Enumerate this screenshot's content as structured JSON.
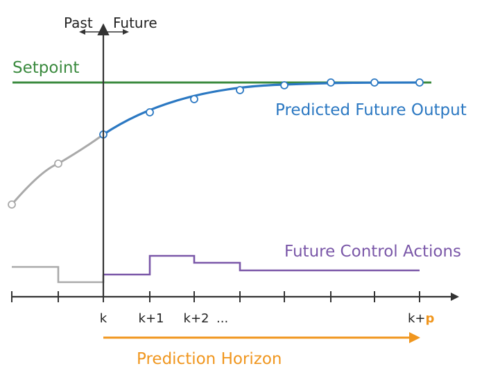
{
  "labels": {
    "past": "Past",
    "future": "Future",
    "setpoint": "Setpoint",
    "predicted_output": "Predicted Future Output",
    "control_actions": "Future Control Actions",
    "prediction_horizon": "Prediction Horizon"
  },
  "ticks": {
    "k": "k",
    "k1": "k+1",
    "k2": "k+2",
    "ellipsis": "...",
    "kp_prefix": "k+",
    "kp_suffix": "p"
  },
  "colors": {
    "setpoint": "#3a8a3e",
    "predicted": "#2b78c2",
    "past": "#a9a9a9",
    "control": "#7a57a8",
    "horizon": "#f0961e",
    "axis": "#333333"
  }
}
